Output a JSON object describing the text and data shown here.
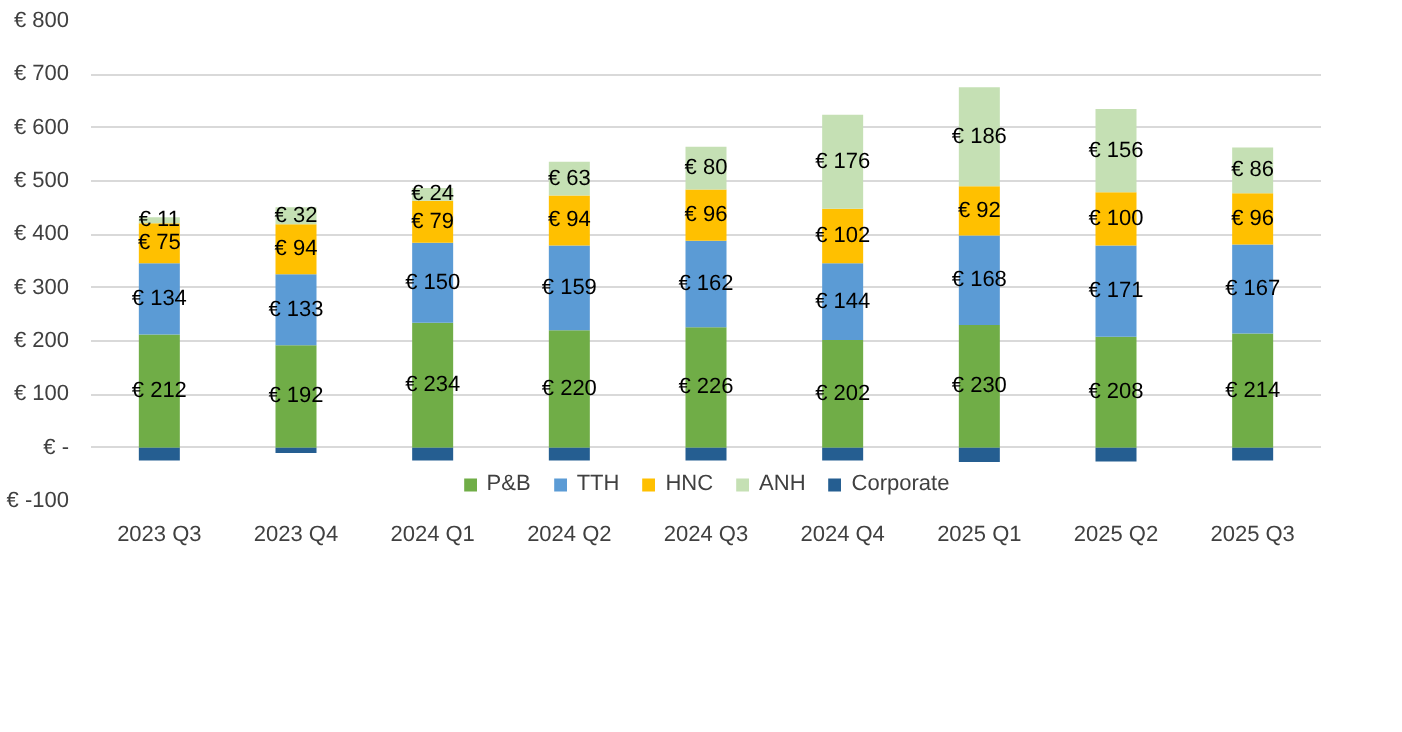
{
  "chart_data": {
    "type": "bar",
    "stacked": true,
    "categories": [
      "2023 Q3",
      "2023 Q4",
      "2024 Q1",
      "2024 Q2",
      "2024 Q3",
      "2024 Q4",
      "2025 Q1",
      "2025 Q2",
      "2025 Q3"
    ],
    "series": [
      {
        "name": "P&B",
        "color": "#70ad47",
        "values": [
          212,
          192,
          234,
          220,
          226,
          202,
          230,
          208,
          214
        ],
        "value_labels": [
          "€ 212",
          "€ 192",
          "€ 234",
          "€ 220",
          "€ 226",
          "€ 202",
          "€ 230",
          "€ 208",
          "€ 214"
        ]
      },
      {
        "name": "TTH",
        "color": "#5b9bd5",
        "values": [
          134,
          133,
          150,
          159,
          162,
          144,
          168,
          171,
          167
        ],
        "value_labels": [
          "€ 134",
          "€ 133",
          "€ 150",
          "€ 159",
          "€ 162",
          "€ 144",
          "€ 168",
          "€ 171",
          "€ 167"
        ]
      },
      {
        "name": "HNC",
        "color": "#ffc000",
        "values": [
          75,
          94,
          79,
          94,
          96,
          102,
          92,
          100,
          96
        ],
        "value_labels": [
          "€ 75",
          "€ 94",
          "€ 79",
          "€ 94",
          "€ 96",
          "€ 102",
          "€ 92",
          "€ 100",
          "€ 96"
        ]
      },
      {
        "name": "ANH",
        "color": "#c5e0b4",
        "values": [
          11,
          32,
          24,
          63,
          80,
          176,
          186,
          156,
          86
        ],
        "value_labels": [
          "€ 11",
          "€ 32",
          "€ 24",
          "€ 63",
          "€ 80",
          "€ 176",
          "€ 186",
          "€ 156",
          "€ 86"
        ]
      },
      {
        "name": "Corporate",
        "color": "#255e91",
        "values": [
          -24,
          -10,
          -24,
          -24,
          -24,
          -24,
          -27,
          -26,
          -24
        ]
      }
    ],
    "ylim": [
      -100,
      800
    ],
    "yticks": [
      {
        "value": -100,
        "label": "€ -100"
      },
      {
        "value": 0,
        "label": "€ -"
      },
      {
        "value": 100,
        "label": "€ 100"
      },
      {
        "value": 200,
        "label": "€ 200"
      },
      {
        "value": 300,
        "label": "€ 300"
      },
      {
        "value": 400,
        "label": "€ 400"
      },
      {
        "value": 500,
        "label": "€ 500"
      },
      {
        "value": 600,
        "label": "€ 600"
      },
      {
        "value": 700,
        "label": "€ 700"
      },
      {
        "value": 800,
        "label": "€ 800"
      }
    ],
    "grid": "y",
    "legend": "bottom"
  }
}
